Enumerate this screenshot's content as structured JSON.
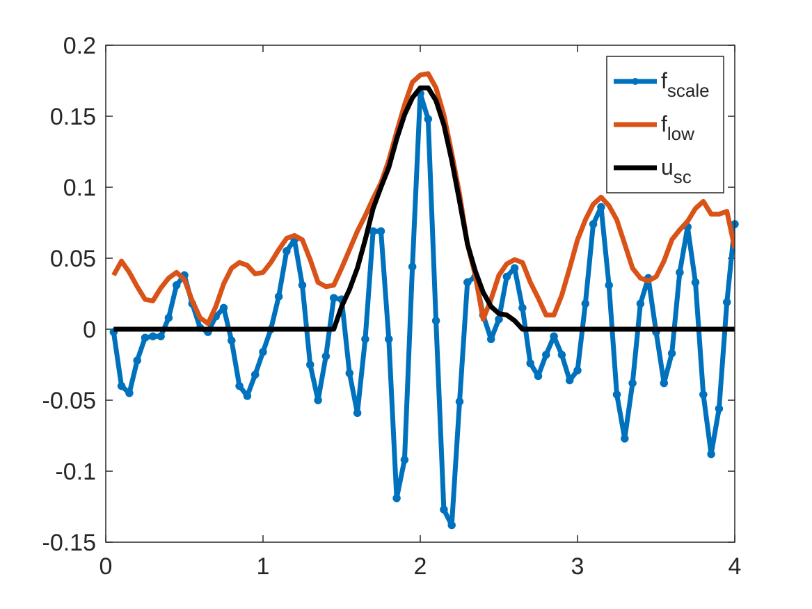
{
  "chart_data": {
    "type": "line",
    "x": [
      0.05,
      0.1,
      0.15,
      0.2,
      0.25,
      0.3,
      0.35,
      0.4,
      0.45,
      0.5,
      0.55,
      0.6,
      0.65,
      0.7,
      0.75,
      0.8,
      0.85,
      0.9,
      0.95,
      1.0,
      1.05,
      1.1,
      1.15,
      1.2,
      1.25,
      1.3,
      1.35,
      1.4,
      1.45,
      1.5,
      1.55,
      1.6,
      1.65,
      1.7,
      1.75,
      1.8,
      1.85,
      1.9,
      1.95,
      2.0,
      2.05,
      2.1,
      2.15,
      2.2,
      2.25,
      2.3,
      2.35,
      2.4,
      2.45,
      2.5,
      2.55,
      2.6,
      2.65,
      2.7,
      2.75,
      2.8,
      2.85,
      2.9,
      2.95,
      3.0,
      3.05,
      3.1,
      3.15,
      3.2,
      3.25,
      3.3,
      3.35,
      3.4,
      3.45,
      3.5,
      3.55,
      3.6,
      3.65,
      3.7,
      3.75,
      3.8,
      3.85,
      3.9,
      3.95,
      4.0
    ],
    "series": [
      {
        "name": "f_{scale}",
        "color": "#0072bd",
        "marker": true,
        "values": [
          -0.002,
          -0.04,
          -0.045,
          -0.022,
          -0.006,
          -0.005,
          -0.005,
          0.008,
          0.031,
          0.038,
          0.018,
          0.001,
          -0.002,
          0.009,
          0.015,
          -0.008,
          -0.04,
          -0.047,
          -0.032,
          -0.016,
          0,
          0.023,
          0.055,
          0.063,
          0.031,
          -0.025,
          -0.05,
          -0.019,
          0.022,
          0.021,
          -0.031,
          -0.059,
          -0.007,
          0.069,
          0.069,
          -0.007,
          -0.119,
          -0.092,
          0.044,
          0.166,
          0.148,
          0.006,
          -0.127,
          -0.138,
          -0.051,
          0.033,
          0.037,
          0.01,
          -0.007,
          0.007,
          0.037,
          0.043,
          0.015,
          -0.024,
          -0.033,
          -0.018,
          -0.005,
          -0.018,
          -0.036,
          -0.029,
          0.018,
          0.074,
          0.086,
          0.031,
          -0.046,
          -0.077,
          -0.038,
          0.018,
          0.036,
          -0.002,
          -0.038,
          -0.017,
          0.04,
          0.072,
          0.033,
          -0.046,
          -0.088,
          -0.056,
          0.019,
          0.074
        ]
      },
      {
        "name": "f_{low}",
        "color": "#d95319",
        "marker": false,
        "values": [
          0.038,
          0.048,
          0.04,
          0.03,
          0.021,
          0.02,
          0.029,
          0.036,
          0.04,
          0.035,
          0.02,
          0.008,
          0.004,
          0.016,
          0.032,
          0.043,
          0.047,
          0.045,
          0.039,
          0.04,
          0.047,
          0.056,
          0.064,
          0.066,
          0.063,
          0.049,
          0.033,
          0.03,
          0.031,
          0.043,
          0.056,
          0.069,
          0.08,
          0.092,
          0.103,
          0.119,
          0.139,
          0.158,
          0.174,
          0.179,
          0.18,
          0.17,
          0.151,
          0.124,
          0.095,
          0.06,
          0.038,
          0.007,
          0.021,
          0.038,
          0.046,
          0.049,
          0.047,
          0.033,
          0.022,
          0.01,
          0.01,
          0.024,
          0.043,
          0.063,
          0.077,
          0.088,
          0.093,
          0.087,
          0.077,
          0.06,
          0.043,
          0.036,
          0.034,
          0.037,
          0.048,
          0.063,
          0.07,
          0.076,
          0.085,
          0.09,
          0.081,
          0.081,
          0.083,
          0.057
        ]
      },
      {
        "name": "u_{sc}",
        "color": "#000000",
        "marker": false,
        "values": [
          0,
          0,
          0,
          0,
          0,
          0,
          0,
          0,
          0,
          0,
          0,
          0,
          0,
          0,
          0,
          0,
          0,
          0,
          0,
          0,
          0,
          0,
          0,
          0,
          0,
          0,
          0,
          0,
          0,
          0.016,
          0.028,
          0.043,
          0.063,
          0.085,
          0.1,
          0.114,
          0.134,
          0.151,
          0.163,
          0.17,
          0.17,
          0.161,
          0.144,
          0.119,
          0.09,
          0.06,
          0.041,
          0.026,
          0.016,
          0.011,
          0.01,
          0.006,
          0,
          0,
          0,
          0,
          0,
          0,
          0,
          0,
          0,
          0,
          0,
          0,
          0,
          0,
          0,
          0,
          0,
          0,
          0,
          0,
          0,
          0,
          0,
          0,
          0,
          0,
          0,
          0
        ]
      }
    ],
    "xlim": [
      0,
      4
    ],
    "xticks": [
      0,
      1,
      2,
      3,
      4
    ],
    "ylim": [
      -0.15,
      0.2
    ],
    "yticks": [
      -0.15,
      -0.1,
      -0.05,
      0,
      0.05,
      0.1,
      0.15,
      0.2
    ],
    "legend": "northeast"
  }
}
